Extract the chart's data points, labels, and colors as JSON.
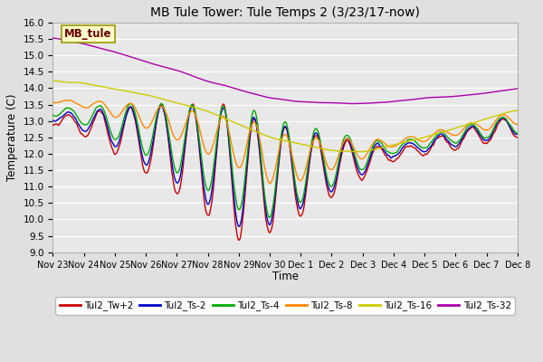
{
  "title": "MB Tule Tower: Tule Temps 2 (3/23/17-now)",
  "xlabel": "Time",
  "ylabel": "Temperature (C)",
  "ylim": [
    9.0,
    16.0
  ],
  "yticks": [
    9.0,
    9.5,
    10.0,
    10.5,
    11.0,
    11.5,
    12.0,
    12.5,
    13.0,
    13.5,
    14.0,
    14.5,
    15.0,
    15.5,
    16.0
  ],
  "x_tick_labels": [
    "Nov 23",
    "Nov 24",
    "Nov 25",
    "Nov 26",
    "Nov 27",
    "Nov 28",
    "Nov 29",
    "Nov 30",
    "Dec 1",
    "Dec 2",
    "Dec 3",
    "Dec 4",
    "Dec 5",
    "Dec 6",
    "Dec 7",
    "Dec 8"
  ],
  "legend_labels": [
    "Tul2_Tw+2",
    "Tul2_Ts-2",
    "Tul2_Ts-4",
    "Tul2_Ts-8",
    "Tul2_Ts-16",
    "Tul2_Ts-32"
  ],
  "colors": {
    "Tw2": "#cc0000",
    "Ts2": "#0000cc",
    "Ts4": "#00aa00",
    "Ts8": "#ff8800",
    "Ts16": "#cccc00",
    "Ts32": "#aa00aa"
  },
  "background_color": "#e0e0e0",
  "plot_bg_color": "#e8e8e8",
  "grid_color": "#ffffff",
  "watermark_text": "MB_tule",
  "watermark_bg": "#ffffcc",
  "watermark_border": "#999900"
}
